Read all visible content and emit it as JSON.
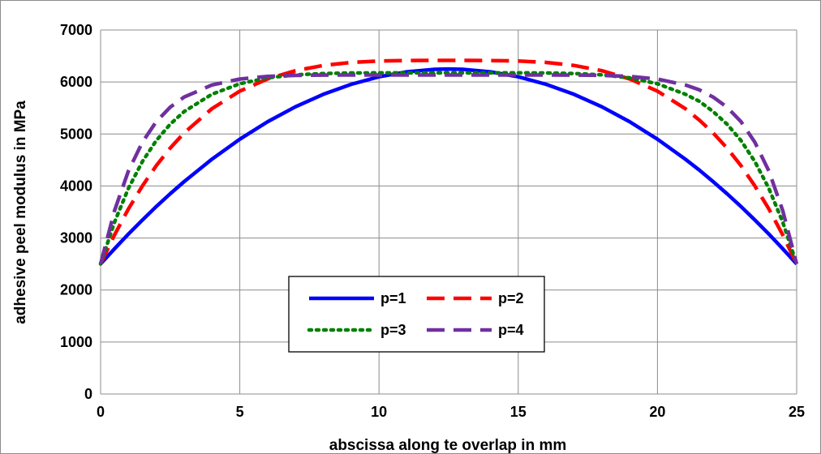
{
  "chart_data": {
    "type": "line",
    "title": "",
    "xlabel": "abscissa along te overlap in mm",
    "ylabel": "adhesive peel modulus in MPa",
    "xlim": [
      0,
      25
    ],
    "ylim": [
      0,
      7000
    ],
    "xticks": [
      0,
      5,
      10,
      15,
      20,
      25
    ],
    "yticks": [
      0,
      1000,
      2000,
      3000,
      4000,
      5000,
      6000,
      7000
    ],
    "grid": true,
    "legend_position": "bottom-center",
    "x": [
      0,
      0.5,
      1,
      1.5,
      2,
      2.5,
      3,
      4,
      5,
      6,
      7,
      8,
      9,
      10,
      11,
      12,
      12.5,
      13,
      14,
      15,
      16,
      17,
      18,
      19,
      20,
      21,
      21.5,
      22,
      22.5,
      23,
      23.5,
      24,
      24.5,
      25
    ],
    "series": [
      {
        "name": "p=1",
        "color": "#0000ff",
        "dash": "solid",
        "values": [
          2500,
          2794,
          3076,
          3346,
          3604,
          3850,
          4084,
          4516,
          4900,
          5236,
          5524,
          5764,
          5956,
          6100,
          6196,
          6244,
          6250,
          6244,
          6196,
          6100,
          5956,
          5764,
          5524,
          5236,
          4900,
          4516,
          4308,
          4084,
          3850,
          3604,
          3346,
          3076,
          2794,
          2500
        ]
      },
      {
        "name": "p=2",
        "color": "#ff0000",
        "dash": "dashed",
        "values": [
          2500,
          3061,
          3560,
          4001,
          4390,
          4728,
          5022,
          5488,
          5824,
          6060,
          6218,
          6319,
          6376,
          6404,
          6412,
          6416,
          6416,
          6416,
          6412,
          6404,
          6376,
          6319,
          6218,
          6060,
          5824,
          5488,
          5270,
          5022,
          4728,
          4390,
          4001,
          3560,
          3061,
          2500
        ]
      },
      {
        "name": "p=3",
        "color": "#008000",
        "dash": "dotted",
        "values": [
          2500,
          3306,
          3956,
          4469,
          4874,
          5188,
          5431,
          5766,
          5966,
          6080,
          6138,
          6163,
          6173,
          6175,
          6175,
          6175,
          6175,
          6175,
          6175,
          6175,
          6173,
          6163,
          6138,
          6080,
          5966,
          5766,
          5630,
          5431,
          5188,
          4874,
          4469,
          3956,
          3306,
          2500
        ]
      },
      {
        "name": "p=4",
        "color": "#7030a0",
        "dash": "dashed",
        "values": [
          2500,
          3528,
          4289,
          4840,
          5237,
          5516,
          5710,
          5943,
          6057,
          6108,
          6127,
          6133,
          6134,
          6134,
          6134,
          6134,
          6134,
          6134,
          6134,
          6134,
          6134,
          6133,
          6127,
          6108,
          6057,
          5943,
          5850,
          5710,
          5516,
          5237,
          4840,
          4289,
          3528,
          2500
        ]
      }
    ]
  }
}
